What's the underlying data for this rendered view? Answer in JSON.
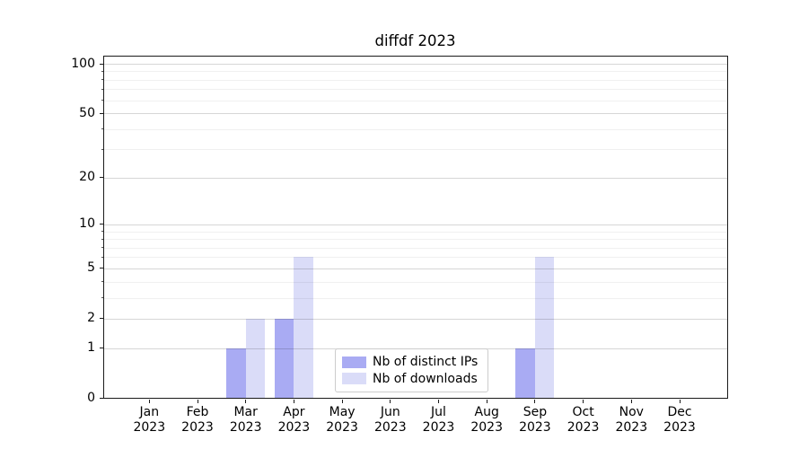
{
  "chart_data": {
    "type": "bar",
    "title": "diffdf 2023",
    "categories": [
      {
        "line1": "Jan",
        "line2": "2023"
      },
      {
        "line1": "Feb",
        "line2": "2023"
      },
      {
        "line1": "Mar",
        "line2": "2023"
      },
      {
        "line1": "Apr",
        "line2": "2023"
      },
      {
        "line1": "May",
        "line2": "2023"
      },
      {
        "line1": "Jun",
        "line2": "2023"
      },
      {
        "line1": "Jul",
        "line2": "2023"
      },
      {
        "line1": "Aug",
        "line2": "2023"
      },
      {
        "line1": "Sep",
        "line2": "2023"
      },
      {
        "line1": "Oct",
        "line2": "2023"
      },
      {
        "line1": "Nov",
        "line2": "2023"
      },
      {
        "line1": "Dec",
        "line2": "2023"
      }
    ],
    "series": [
      {
        "name": "Nb of distinct IPs",
        "color": "#a9abf3",
        "values": [
          0,
          0,
          1,
          2,
          0,
          0,
          0,
          0,
          1,
          0,
          0,
          0
        ]
      },
      {
        "name": "Nb of downloads",
        "color": "#dadcf8",
        "values": [
          0,
          0,
          2,
          6,
          0,
          0,
          0,
          0,
          6,
          0,
          0,
          0
        ]
      }
    ],
    "y_axis": {
      "scale": "log1p",
      "ticks": [
        0,
        1,
        2,
        5,
        10,
        20,
        50,
        100
      ],
      "minor_gridlines": [
        3,
        4,
        6,
        7,
        8,
        9,
        30,
        40,
        60,
        70,
        80,
        90
      ],
      "ylim": [
        0,
        112
      ]
    },
    "grid": true,
    "legend_position": "lower center"
  }
}
